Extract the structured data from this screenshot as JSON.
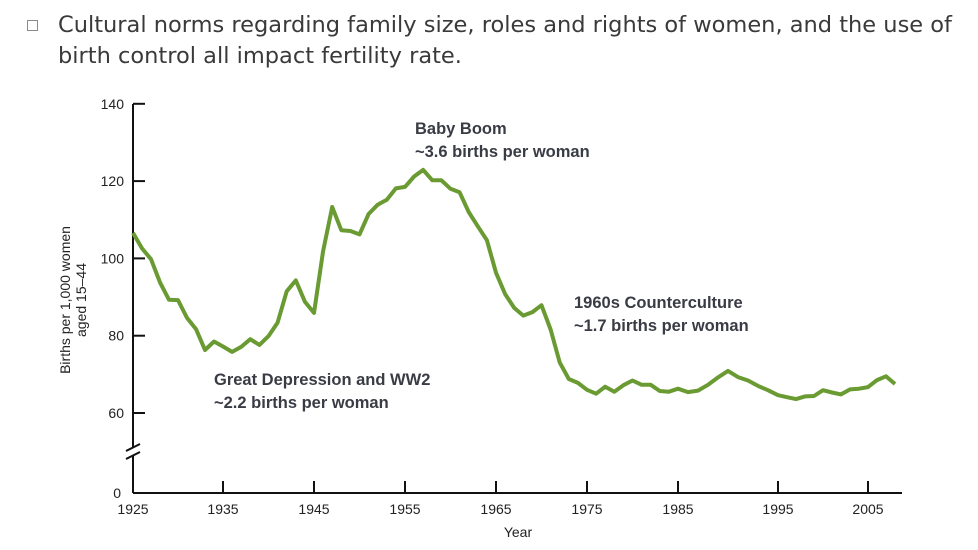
{
  "slide": {
    "bullet_text": "Cultural norms regarding family size, roles and rights of women, and the use of birth control all impact fertility rate."
  },
  "chart_data": {
    "type": "line",
    "title": "",
    "xlabel": "Year",
    "ylabel": [
      "Births per 1,000 women",
      "aged 15–44"
    ],
    "x_ticks": [
      "1925",
      "1935",
      "1945",
      "1955",
      "1965",
      "1975",
      "1985",
      "1995",
      "2005"
    ],
    "y_ticks": [
      "0",
      "60",
      "80",
      "100",
      "120",
      "140"
    ],
    "ylim": [
      0,
      140
    ],
    "y_axis_break": [
      0,
      60
    ],
    "xlim": [
      1925,
      2008
    ],
    "grid": false,
    "line_color": "#6a9a32",
    "series": [
      {
        "name": "Fertility rate",
        "x": [
          1925,
          1926,
          1927,
          1928,
          1929,
          1930,
          1931,
          1932,
          1933,
          1934,
          1935,
          1936,
          1937,
          1938,
          1939,
          1940,
          1941,
          1942,
          1943,
          1944,
          1945,
          1946,
          1947,
          1948,
          1949,
          1950,
          1951,
          1952,
          1953,
          1954,
          1955,
          1956,
          1957,
          1958,
          1959,
          1960,
          1961,
          1962,
          1963,
          1964,
          1965,
          1966,
          1967,
          1968,
          1969,
          1970,
          1971,
          1972,
          1973,
          1974,
          1975,
          1976,
          1977,
          1978,
          1979,
          1980,
          1981,
          1982,
          1983,
          1984,
          1985,
          1986,
          1987,
          1988,
          1989,
          1990,
          1991,
          1992,
          1993,
          1994,
          1995,
          1996,
          1997,
          1998,
          1999,
          2000,
          2001,
          2002,
          2003,
          2004,
          2005,
          2006,
          2007,
          2008
        ],
        "values": [
          106.6,
          102.6,
          99.8,
          93.8,
          89.3,
          89.2,
          84.6,
          81.7,
          76.3,
          78.5,
          77.2,
          75.8,
          77.1,
          79.1,
          77.6,
          79.9,
          83.4,
          91.5,
          94.3,
          88.8,
          85.9,
          101.9,
          113.3,
          107.3,
          107.1,
          106.2,
          111.5,
          113.9,
          115.2,
          118.1,
          118.5,
          121.2,
          122.9,
          120.2,
          120.2,
          118.0,
          117.1,
          112.0,
          108.3,
          104.7,
          96.3,
          90.8,
          87.2,
          85.2,
          86.1,
          87.9,
          81.6,
          73.1,
          68.8,
          67.8,
          66.0,
          65.0,
          66.8,
          65.5,
          67.2,
          68.4,
          67.3,
          67.3,
          65.7,
          65.5,
          66.3,
          65.4,
          65.8,
          67.3,
          69.2,
          70.9,
          69.3,
          68.4,
          67.0,
          65.9,
          64.6,
          64.1,
          63.6,
          64.3,
          64.4,
          65.9,
          65.3,
          64.8,
          66.1,
          66.3,
          66.7,
          68.5,
          69.5,
          67.5
        ]
      }
    ],
    "annotations": [
      {
        "line1": "Baby Boom",
        "line2": "~3.6 births per woman"
      },
      {
        "line1": "Great Depression and WW2",
        "line2": "~2.2 births per woman"
      },
      {
        "line1": "1960s Counterculture",
        "line2": "~1.7 births per woman"
      }
    ]
  }
}
